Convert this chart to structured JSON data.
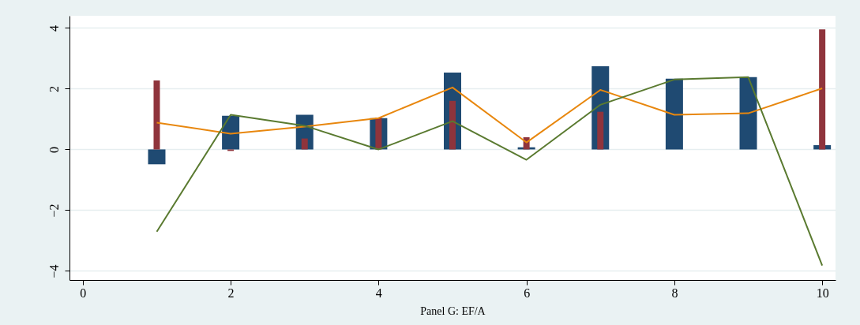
{
  "chart_data": {
    "type": "bar",
    "xlabel": "Panel G: EF/A",
    "x": [
      1,
      2,
      3,
      4,
      5,
      6,
      7,
      8,
      9,
      10
    ],
    "series": [
      {
        "color": "#1f4a72",
        "values": [
          -0.49,
          1.11,
          1.14,
          1.03,
          2.53,
          0.07,
          2.74,
          2.33,
          2.38,
          0.14
        ]
      },
      {
        "color": "#8f343c",
        "values": [
          2.27,
          -0.05,
          0.36,
          1.05,
          1.6,
          0.4,
          1.24,
          0,
          0,
          3.95
        ]
      },
      {
        "type": "line",
        "color": "#e8870e",
        "values": [
          0.88,
          0.52,
          0.75,
          1.03,
          2.04,
          0.23,
          1.96,
          1.14,
          1.19,
          2.01
        ]
      },
      {
        "type": "line",
        "color": "#5a7a30",
        "values": [
          -2.71,
          1.14,
          0.78,
          0,
          0.93,
          -0.34,
          1.47,
          2.3,
          2.38,
          -3.82
        ]
      }
    ],
    "xlim": [
      -0.18,
      10.18
    ],
    "xticks": [
      0,
      2,
      4,
      6,
      8,
      10
    ],
    "ylim": [
      -4.3,
      4.4
    ],
    "yticks": [
      -4,
      -2,
      0,
      2,
      4
    ],
    "grid": "y",
    "legend": false
  }
}
